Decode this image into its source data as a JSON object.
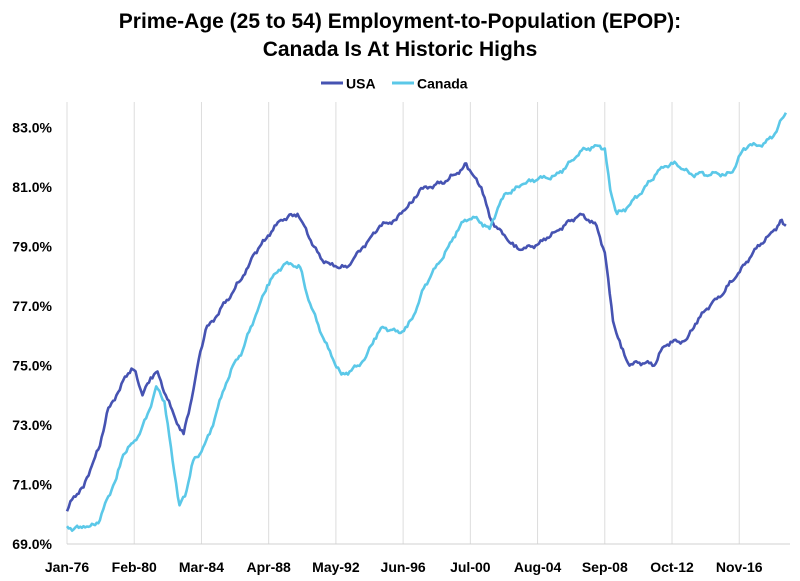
{
  "chart_data": {
    "type": "line",
    "title": "Prime-Age (25 to 54) Employment-to-Population (EPOP):",
    "subtitle": "Canada Is At Historic Highs",
    "xlabel": "",
    "ylabel": "",
    "x_tick_labels": [
      "Jan-76",
      "Feb-80",
      "Mar-84",
      "Apr-88",
      "May-92",
      "Jun-96",
      "Jul-00",
      "Aug-04",
      "Sep-08",
      "Oct-12",
      "Nov-16"
    ],
    "x_tick_dates": [
      "1976-01",
      "1980-02",
      "1984-03",
      "1988-04",
      "1992-05",
      "1996-06",
      "2000-07",
      "2004-08",
      "2008-09",
      "2012-10",
      "2016-11"
    ],
    "x_range": [
      "1976-01",
      "2019-12"
    ],
    "y_tick_labels": [
      "69.0%",
      "71.0%",
      "73.0%",
      "75.0%",
      "77.0%",
      "79.0%",
      "81.0%",
      "83.0%"
    ],
    "ylim": [
      69,
      84.2
    ],
    "grid": "vertical",
    "legend_position": "top-center",
    "series": [
      {
        "name": "USA",
        "color": "#4653b2",
        "points": [
          [
            "1976-01",
            70.1
          ],
          [
            "1976-06",
            70.6
          ],
          [
            "1977-01",
            70.9
          ],
          [
            "1977-06",
            71.5
          ],
          [
            "1978-01",
            72.3
          ],
          [
            "1978-06",
            73.4
          ],
          [
            "1979-01",
            74.0
          ],
          [
            "1979-06",
            74.5
          ],
          [
            "1979-12",
            74.9
          ],
          [
            "1980-03",
            74.8
          ],
          [
            "1980-08",
            74.0
          ],
          [
            "1981-02",
            74.6
          ],
          [
            "1981-07",
            74.8
          ],
          [
            "1982-01",
            74.0
          ],
          [
            "1982-08",
            73.2
          ],
          [
            "1983-02",
            72.7
          ],
          [
            "1983-08",
            73.9
          ],
          [
            "1984-01",
            75.2
          ],
          [
            "1984-06",
            76.2
          ],
          [
            "1985-01",
            76.6
          ],
          [
            "1985-06",
            77.0
          ],
          [
            "1986-01",
            77.4
          ],
          [
            "1986-06",
            77.8
          ],
          [
            "1987-01",
            78.3
          ],
          [
            "1987-06",
            78.8
          ],
          [
            "1988-01",
            79.2
          ],
          [
            "1988-06",
            79.5
          ],
          [
            "1989-01",
            79.9
          ],
          [
            "1989-06",
            80.0
          ],
          [
            "1990-01",
            80.1
          ],
          [
            "1990-06",
            79.7
          ],
          [
            "1991-01",
            79.0
          ],
          [
            "1991-06",
            78.6
          ],
          [
            "1992-01",
            78.4
          ],
          [
            "1992-06",
            78.3
          ],
          [
            "1993-01",
            78.3
          ],
          [
            "1993-06",
            78.6
          ],
          [
            "1994-01",
            79.0
          ],
          [
            "1994-06",
            79.3
          ],
          [
            "1995-01",
            79.7
          ],
          [
            "1995-06",
            79.8
          ],
          [
            "1996-01",
            79.9
          ],
          [
            "1996-06",
            80.2
          ],
          [
            "1997-01",
            80.5
          ],
          [
            "1997-06",
            80.9
          ],
          [
            "1998-01",
            81.0
          ],
          [
            "1998-06",
            81.1
          ],
          [
            "1999-01",
            81.2
          ],
          [
            "1999-06",
            81.4
          ],
          [
            "2000-01",
            81.6
          ],
          [
            "2000-04",
            81.8
          ],
          [
            "2000-09",
            81.4
          ],
          [
            "2001-03",
            81.0
          ],
          [
            "2001-09",
            80.0
          ],
          [
            "2002-03",
            79.6
          ],
          [
            "2002-09",
            79.3
          ],
          [
            "2003-03",
            79.0
          ],
          [
            "2003-09",
            78.9
          ],
          [
            "2004-03",
            79.0
          ],
          [
            "2004-09",
            79.1
          ],
          [
            "2005-03",
            79.3
          ],
          [
            "2005-09",
            79.5
          ],
          [
            "2006-03",
            79.7
          ],
          [
            "2006-09",
            79.9
          ],
          [
            "2007-03",
            80.1
          ],
          [
            "2007-09",
            79.9
          ],
          [
            "2008-03",
            79.7
          ],
          [
            "2008-09",
            78.8
          ],
          [
            "2009-03",
            76.5
          ],
          [
            "2009-09",
            75.6
          ],
          [
            "2010-03",
            75.0
          ],
          [
            "2010-09",
            75.1
          ],
          [
            "2011-03",
            75.1
          ],
          [
            "2011-09",
            75.0
          ],
          [
            "2012-03",
            75.6
          ],
          [
            "2012-09",
            75.8
          ],
          [
            "2013-03",
            75.8
          ],
          [
            "2013-09",
            75.9
          ],
          [
            "2014-03",
            76.4
          ],
          [
            "2014-09",
            76.8
          ],
          [
            "2015-03",
            77.1
          ],
          [
            "2015-09",
            77.3
          ],
          [
            "2016-03",
            77.7
          ],
          [
            "2016-09",
            78.0
          ],
          [
            "2017-03",
            78.4
          ],
          [
            "2017-09",
            78.8
          ],
          [
            "2018-03",
            79.1
          ],
          [
            "2018-09",
            79.4
          ],
          [
            "2019-03",
            79.7
          ],
          [
            "2019-06",
            79.9
          ],
          [
            "2019-09",
            79.7
          ]
        ]
      },
      {
        "name": "Canada",
        "color": "#5bc8e8",
        "points": [
          [
            "1976-01",
            69.6
          ],
          [
            "1976-06",
            69.5
          ],
          [
            "1977-01",
            69.6
          ],
          [
            "1977-06",
            69.6
          ],
          [
            "1978-01",
            69.8
          ],
          [
            "1978-06",
            70.5
          ],
          [
            "1979-01",
            71.2
          ],
          [
            "1979-06",
            72.0
          ],
          [
            "1980-01",
            72.4
          ],
          [
            "1980-06",
            72.7
          ],
          [
            "1981-01",
            73.5
          ],
          [
            "1981-06",
            74.3
          ],
          [
            "1981-12",
            73.8
          ],
          [
            "1982-06",
            71.8
          ],
          [
            "1982-11",
            70.3
          ],
          [
            "1983-03",
            70.6
          ],
          [
            "1983-09",
            71.8
          ],
          [
            "1984-03",
            72.1
          ],
          [
            "1984-09",
            72.7
          ],
          [
            "1985-03",
            73.6
          ],
          [
            "1985-09",
            74.4
          ],
          [
            "1986-03",
            75.1
          ],
          [
            "1986-09",
            75.5
          ],
          [
            "1987-03",
            76.3
          ],
          [
            "1987-09",
            77.0
          ],
          [
            "1988-03",
            77.7
          ],
          [
            "1988-09",
            78.1
          ],
          [
            "1989-03",
            78.4
          ],
          [
            "1989-09",
            78.4
          ],
          [
            "1990-03",
            78.3
          ],
          [
            "1990-09",
            77.2
          ],
          [
            "1991-03",
            76.5
          ],
          [
            "1991-09",
            75.8
          ],
          [
            "1992-03",
            75.2
          ],
          [
            "1992-09",
            74.7
          ],
          [
            "1993-03",
            74.8
          ],
          [
            "1993-09",
            75.0
          ],
          [
            "1994-03",
            75.3
          ],
          [
            "1994-09",
            75.9
          ],
          [
            "1995-03",
            76.3
          ],
          [
            "1995-09",
            76.2
          ],
          [
            "1996-03",
            76.1
          ],
          [
            "1996-09",
            76.3
          ],
          [
            "1997-03",
            76.8
          ],
          [
            "1997-09",
            77.6
          ],
          [
            "1998-03",
            78.1
          ],
          [
            "1998-09",
            78.5
          ],
          [
            "1999-03",
            79.0
          ],
          [
            "1999-09",
            79.5
          ],
          [
            "2000-03",
            79.9
          ],
          [
            "2000-09",
            80.0
          ],
          [
            "2001-03",
            79.8
          ],
          [
            "2001-09",
            79.6
          ],
          [
            "2002-03",
            80.3
          ],
          [
            "2002-09",
            80.8
          ],
          [
            "2003-03",
            80.9
          ],
          [
            "2003-09",
            81.1
          ],
          [
            "2004-03",
            81.2
          ],
          [
            "2004-09",
            81.3
          ],
          [
            "2005-03",
            81.3
          ],
          [
            "2005-09",
            81.4
          ],
          [
            "2006-03",
            81.6
          ],
          [
            "2006-09",
            81.9
          ],
          [
            "2007-03",
            82.2
          ],
          [
            "2007-09",
            82.3
          ],
          [
            "2008-03",
            82.4
          ],
          [
            "2008-09",
            82.3
          ],
          [
            "2009-01",
            80.9
          ],
          [
            "2009-06",
            80.1
          ],
          [
            "2010-01",
            80.3
          ],
          [
            "2010-06",
            80.6
          ],
          [
            "2011-01",
            80.9
          ],
          [
            "2011-06",
            81.2
          ],
          [
            "2012-01",
            81.6
          ],
          [
            "2012-06",
            81.7
          ],
          [
            "2013-01",
            81.8
          ],
          [
            "2013-06",
            81.6
          ],
          [
            "2014-01",
            81.4
          ],
          [
            "2014-06",
            81.5
          ],
          [
            "2015-01",
            81.4
          ],
          [
            "2015-06",
            81.5
          ],
          [
            "2016-01",
            81.4
          ],
          [
            "2016-06",
            81.5
          ],
          [
            "2017-01",
            82.2
          ],
          [
            "2017-06",
            82.4
          ],
          [
            "2018-01",
            82.4
          ],
          [
            "2018-06",
            82.5
          ],
          [
            "2019-01",
            82.8
          ],
          [
            "2019-06",
            83.3
          ],
          [
            "2019-09",
            83.5
          ]
        ]
      }
    ]
  }
}
